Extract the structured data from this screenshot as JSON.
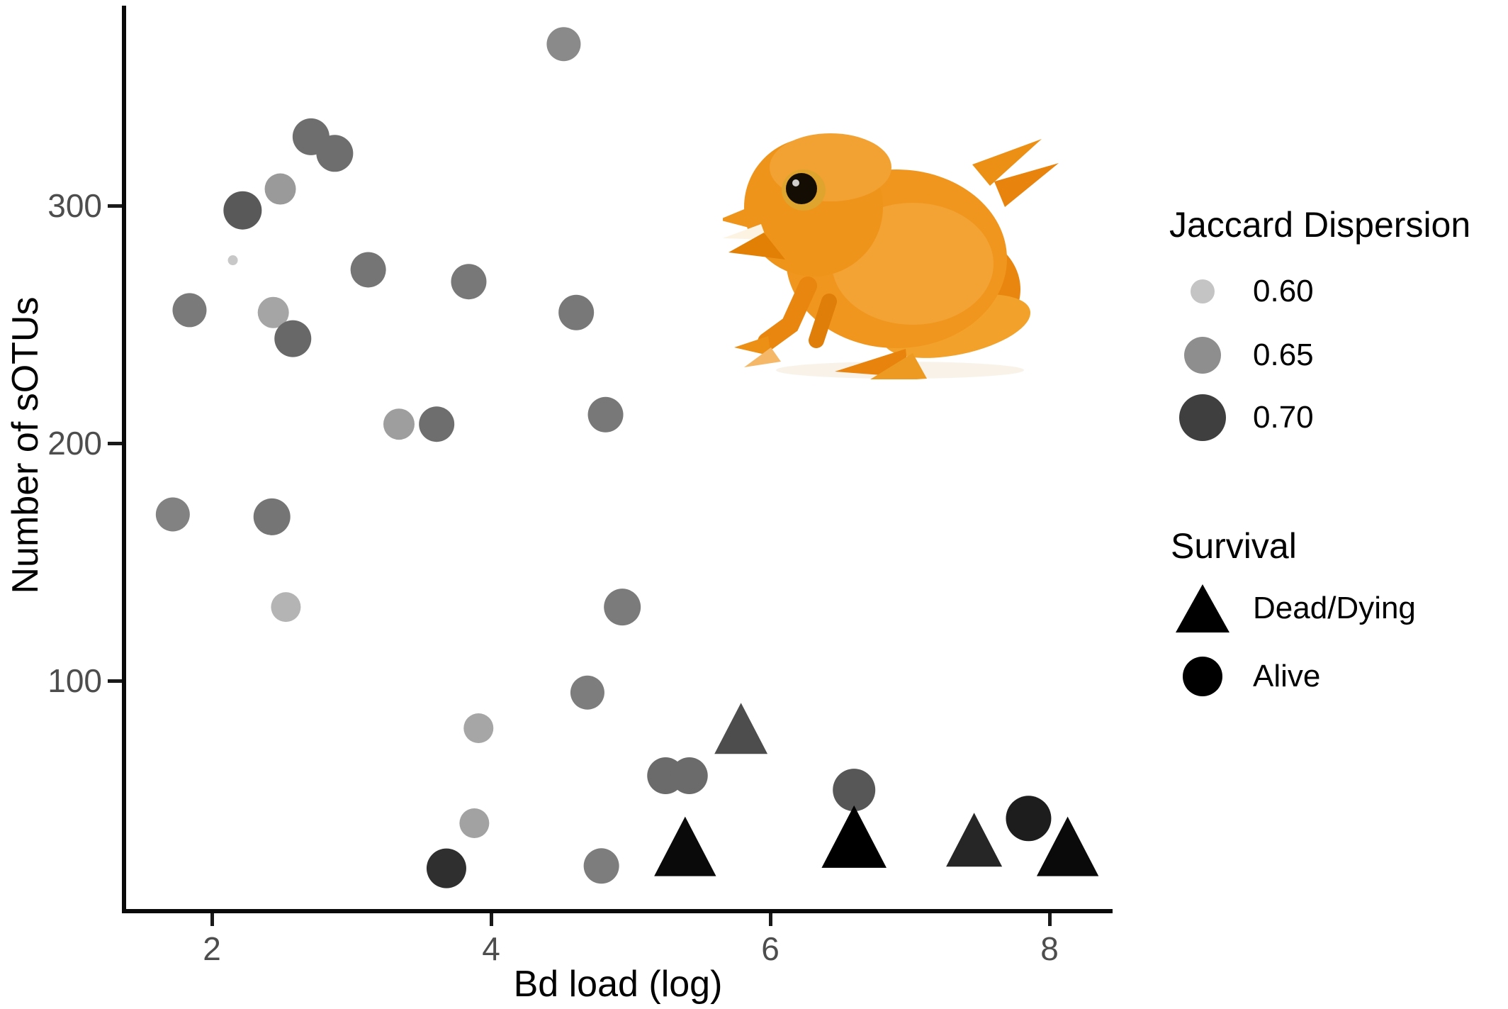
{
  "figure": {
    "type": "scatter plot",
    "background": "#ffffff"
  },
  "chart_data": {
    "type": "scatter",
    "title": "",
    "xlabel": "Bd load (log)",
    "ylabel": "Number of sOTUs",
    "x_ticks": [
      2,
      4,
      6,
      8
    ],
    "y_ticks": [
      100,
      200,
      300
    ],
    "xlim": [
      1.35,
      8.45
    ],
    "ylim": [
      3,
      385
    ],
    "grid": false,
    "size_color_encoding": "Jaccard Dispersion (darker and larger = higher dispersion)",
    "shape_encoding": "Survival (triangle = Dead/Dying, circle = Alive)",
    "points": [
      {
        "bd_load": 2.71,
        "sotus": 329,
        "jaccard_dispersion": 0.67,
        "survival": "Alive",
        "color": "#6e6e6e",
        "size": 26
      },
      {
        "bd_load": 2.88,
        "sotus": 322,
        "jaccard_dispersion": 0.67,
        "survival": "Alive",
        "color": "#6e6e6e",
        "size": 26
      },
      {
        "bd_load": 2.49,
        "sotus": 307,
        "jaccard_dispersion": 0.64,
        "survival": "Alive",
        "color": "#9a9a9a",
        "size": 22
      },
      {
        "bd_load": 2.22,
        "sotus": 298,
        "jaccard_dispersion": 0.69,
        "survival": "Alive",
        "color": "#595959",
        "size": 27
      },
      {
        "bd_load": 2.15,
        "sotus": 277,
        "jaccard_dispersion": 0.58,
        "survival": "Alive",
        "color": "#c8c8c8",
        "size": 7
      },
      {
        "bd_load": 3.12,
        "sotus": 273,
        "jaccard_dispersion": 0.66,
        "survival": "Alive",
        "color": "#757575",
        "size": 25
      },
      {
        "bd_load": 3.84,
        "sotus": 268,
        "jaccard_dispersion": 0.66,
        "survival": "Alive",
        "color": "#787878",
        "size": 25
      },
      {
        "bd_load": 1.84,
        "sotus": 256,
        "jaccard_dispersion": 0.66,
        "survival": "Alive",
        "color": "#7a7a7a",
        "size": 24
      },
      {
        "bd_load": 2.44,
        "sotus": 255,
        "jaccard_dispersion": 0.63,
        "survival": "Alive",
        "color": "#a5a5a5",
        "size": 22
      },
      {
        "bd_load": 2.58,
        "sotus": 244,
        "jaccard_dispersion": 0.675,
        "survival": "Alive",
        "color": "#686868",
        "size": 26
      },
      {
        "bd_load": 4.52,
        "sotus": 368,
        "jaccard_dispersion": 0.65,
        "survival": "Alive",
        "color": "#8a8a8a",
        "size": 24
      },
      {
        "bd_load": 4.61,
        "sotus": 255,
        "jaccard_dispersion": 0.66,
        "survival": "Alive",
        "color": "#787878",
        "size": 25
      },
      {
        "bd_load": 3.34,
        "sotus": 208,
        "jaccard_dispersion": 0.64,
        "survival": "Alive",
        "color": "#9e9e9e",
        "size": 22
      },
      {
        "bd_load": 3.61,
        "sotus": 208,
        "jaccard_dispersion": 0.67,
        "survival": "Alive",
        "color": "#6e6e6e",
        "size": 25
      },
      {
        "bd_load": 4.82,
        "sotus": 212,
        "jaccard_dispersion": 0.66,
        "survival": "Alive",
        "color": "#787878",
        "size": 25
      },
      {
        "bd_load": 1.72,
        "sotus": 170,
        "jaccard_dispersion": 0.66,
        "survival": "Alive",
        "color": "#828282",
        "size": 24
      },
      {
        "bd_load": 2.43,
        "sotus": 169,
        "jaccard_dispersion": 0.665,
        "survival": "Alive",
        "color": "#757575",
        "size": 26
      },
      {
        "bd_load": 2.53,
        "sotus": 131,
        "jaccard_dispersion": 0.61,
        "survival": "Alive",
        "color": "#b4b4b4",
        "size": 21
      },
      {
        "bd_load": 4.94,
        "sotus": 131,
        "jaccard_dispersion": 0.66,
        "survival": "Alive",
        "color": "#7b7b7b",
        "size": 26
      },
      {
        "bd_load": 4.69,
        "sotus": 95,
        "jaccard_dispersion": 0.66,
        "survival": "Alive",
        "color": "#7d7d7d",
        "size": 24
      },
      {
        "bd_load": 3.91,
        "sotus": 80,
        "jaccard_dispersion": 0.63,
        "survival": "Alive",
        "color": "#a6a6a6",
        "size": 21
      },
      {
        "bd_load": 3.88,
        "sotus": 40,
        "jaccard_dispersion": 0.63,
        "survival": "Alive",
        "color": "#a2a2a2",
        "size": 21
      },
      {
        "bd_load": 3.68,
        "sotus": 21,
        "jaccard_dispersion": 0.72,
        "survival": "Alive",
        "color": "#2f2f2f",
        "size": 28
      },
      {
        "bd_load": 4.79,
        "sotus": 22,
        "jaccard_dispersion": 0.66,
        "survival": "Alive",
        "color": "#7d7d7d",
        "size": 25
      },
      {
        "bd_load": 5.25,
        "sotus": 60,
        "jaccard_dispersion": 0.675,
        "survival": "Alive",
        "color": "#6b6b6b",
        "size": 26
      },
      {
        "bd_load": 5.42,
        "sotus": 60,
        "jaccard_dispersion": 0.675,
        "survival": "Alive",
        "color": "#6b6b6b",
        "size": 26
      },
      {
        "bd_load": 6.6,
        "sotus": 54,
        "jaccard_dispersion": 0.69,
        "survival": "Alive",
        "color": "#575757",
        "size": 30
      },
      {
        "bd_load": 7.85,
        "sotus": 42,
        "jaccard_dispersion": 0.735,
        "survival": "Alive",
        "color": "#1d1d1d",
        "size": 32
      },
      {
        "bd_load": 5.79,
        "sotus": 78,
        "jaccard_dispersion": 0.7,
        "survival": "Dead/Dying",
        "color": "#4d4d4d",
        "size": 36
      },
      {
        "bd_load": 5.39,
        "sotus": 28,
        "jaccard_dispersion": 0.748,
        "survival": "Dead/Dying",
        "color": "#0a0a0a",
        "size": 42
      },
      {
        "bd_load": 6.6,
        "sotus": 32,
        "jaccard_dispersion": 0.75,
        "survival": "Dead/Dying",
        "color": "#000000",
        "size": 44
      },
      {
        "bd_load": 7.46,
        "sotus": 31,
        "jaccard_dispersion": 0.725,
        "survival": "Dead/Dying",
        "color": "#262626",
        "size": 38
      },
      {
        "bd_load": 8.13,
        "sotus": 28,
        "jaccard_dispersion": 0.748,
        "survival": "Dead/Dying",
        "color": "#0a0a0a",
        "size": 42
      }
    ]
  },
  "legend": {
    "dispersion": {
      "title": "Jaccard Dispersion",
      "items": [
        {
          "label": "0.60",
          "color": "#c4c4c4",
          "radius": 17
        },
        {
          "label": "0.65",
          "color": "#8e8e8e",
          "radius": 26
        },
        {
          "label": "0.70",
          "color": "#3f3f3f",
          "radius": 33
        }
      ]
    },
    "survival": {
      "title": "Survival",
      "items": [
        {
          "label": "Dead/Dying",
          "shape": "triangle",
          "color": "#000000"
        },
        {
          "label": "Alive",
          "shape": "circle",
          "color": "#000000"
        }
      ]
    }
  },
  "annotations": {
    "frog_image": "photo of an orange pumpkin toadlet frog, upper middle of plot"
  }
}
